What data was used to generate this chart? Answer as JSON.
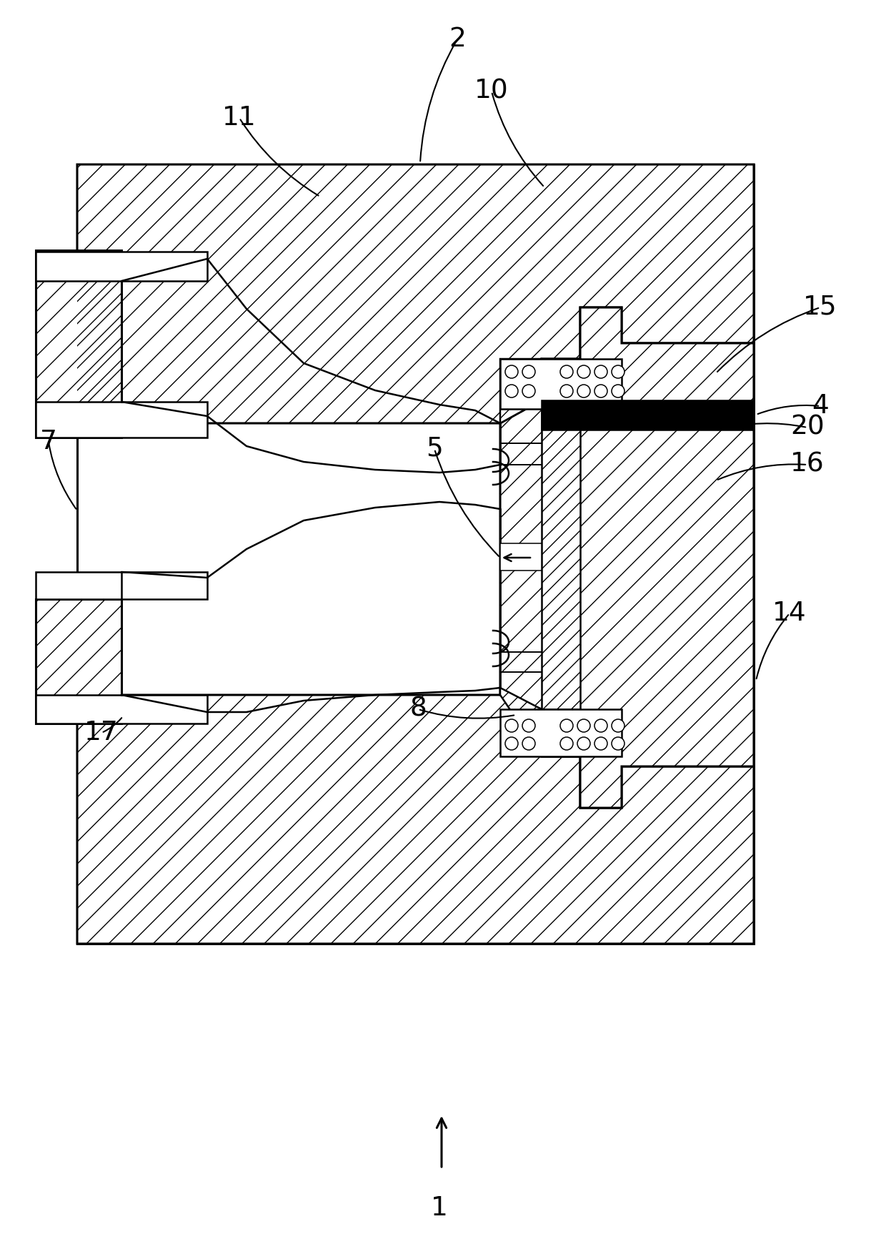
{
  "bg": "#ffffff",
  "lc": "#000000",
  "figsize": [
    12.4,
    17.54
  ],
  "dpi": 100,
  "label_defs": [
    [
      "1",
      615,
      1690,
      618,
      1648,
      false
    ],
    [
      "2",
      640,
      55,
      588,
      228,
      true
    ],
    [
      "4",
      1148,
      568,
      1058,
      580,
      true
    ],
    [
      "5",
      608,
      628,
      700,
      780,
      true
    ],
    [
      "7",
      68,
      618,
      108,
      714,
      true
    ],
    [
      "8",
      585,
      992,
      722,
      1000,
      true
    ],
    [
      "10",
      688,
      128,
      762,
      262,
      true
    ],
    [
      "11",
      335,
      165,
      448,
      275,
      true
    ],
    [
      "14",
      1105,
      858,
      1058,
      952,
      true
    ],
    [
      "15",
      1148,
      430,
      1002,
      522,
      true
    ],
    [
      "16",
      1130,
      650,
      1002,
      672,
      true
    ],
    [
      "17",
      142,
      1025,
      172,
      1002,
      true
    ],
    [
      "20",
      1130,
      598,
      1002,
      602,
      true
    ]
  ]
}
